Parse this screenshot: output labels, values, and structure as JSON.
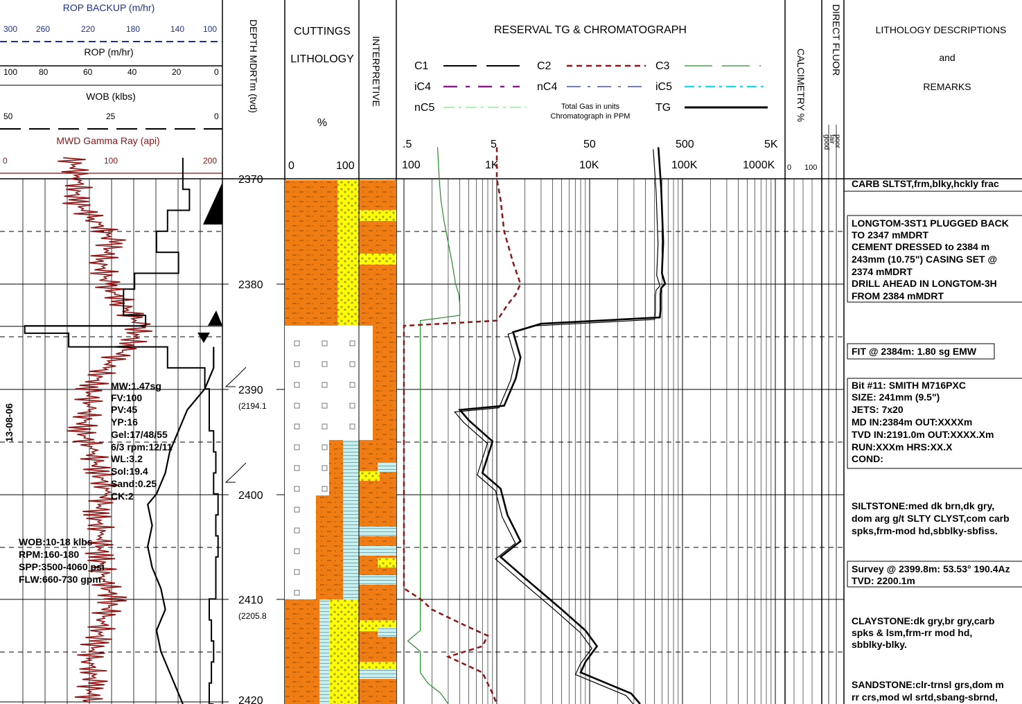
{
  "header": {
    "rop_backup": {
      "title": "ROP BACKUP (m/hr)",
      "ticks": [
        "300",
        "260",
        "220",
        "180",
        "140",
        "100"
      ]
    },
    "rop": {
      "title": "ROP (m/hr)",
      "ticks": [
        "100",
        "80",
        "60",
        "40",
        "20",
        "0"
      ]
    },
    "wob": {
      "title": "WOB (klbs)",
      "ticks": [
        "50",
        "25",
        "0"
      ]
    },
    "gamma": {
      "title": "MWD Gamma Ray (api)",
      "ticks": [
        "0",
        "100",
        "200"
      ]
    },
    "depth_title": "DEPTH MDRTm (tvd)",
    "cuttings": {
      "title1": "CUTTINGS",
      "title2": "LITHOLOGY",
      "unit": "%",
      "tick_left": "0",
      "tick_right": "100"
    },
    "interpretive": "INTERPRETIVE",
    "gas": {
      "title": "RESERVAL TG & CHROMATOGRAPH",
      "legend": [
        "C1",
        "C2",
        "C3",
        "iC4",
        "nC4",
        "iC5",
        "nC5",
        "TG"
      ],
      "note1": "Total Gas in units",
      "note2": "Chromatograph in PPM",
      "ticks_units": [
        ".5",
        "5",
        "50",
        "500",
        "5K"
      ],
      "ticks_ppm": [
        "100",
        "1K",
        "10K",
        "100K",
        "1000K"
      ]
    },
    "calcimetry": {
      "title": "CALCIMETRY %",
      "tick_left": "0",
      "tick_right": "100"
    },
    "direct_fluor": {
      "title": "DIRECT FLUOR",
      "grades": [
        "poor",
        "fair",
        "good"
      ]
    },
    "lithology": {
      "title": "LITHOLOGY DESCRIPTIONS",
      "and": "and",
      "remarks": "REMARKS"
    }
  },
  "depth": {
    "labels": [
      "2370",
      "2380",
      "2390",
      "2400",
      "2410",
      "2420"
    ],
    "tvd": [
      "(2194.1",
      "(2205.8"
    ]
  },
  "annotations": {
    "date": "13-08-06",
    "mud": [
      "MW:1.47sg",
      "FV:100",
      "PV:45",
      "YP:16",
      "Gel:17/48/55",
      "6/3 rpm:12/11",
      "WL:3.2",
      "Sol:19.4",
      "Sand:0.25",
      "CK:2"
    ],
    "drilling": [
      "WOB:10-18 klbs",
      "RPM:160-180",
      "SPP:3500-4060 psi",
      "FLW:660-730 gpm"
    ]
  },
  "remarks": {
    "carb_top": "CARB SLTST,frm,blky,hckly frac",
    "plug": [
      "LONGTOM-3ST1 PLUGGED BACK",
      "TO 2347 mMDRT",
      "CEMENT DRESSED to 2384 m",
      "243mm (10.75\") CASING SET @",
      "2374 mMDRT",
      "DRILL AHEAD IN LONGTOM-3H",
      "FROM 2384 mMDRT"
    ],
    "fit": "FIT @ 2384m: 1.80 sg EMW",
    "bit": [
      "Bit #11: SMITH M716PXC",
      "SIZE: 241mm (9.5\")",
      "JETS: 7x20",
      "MD IN:2384m     OUT:XXXXm",
      "TVD IN:2191.0m  OUT:XXXX.Xm",
      "RUN:XXXm        HRS:XX.X",
      "COND:"
    ],
    "siltstone": [
      "SILTSTONE:med dk brn,dk gry,",
      "dom arg g/t SLTY CLYST,com carb",
      "spks,frm-mod hd,sbblky-sbfiss."
    ],
    "survey": [
      "Survey @ 2399.8m: 53.53° 190.4Az",
      "TVD: 2200.1m"
    ],
    "claystone": [
      "CLAYSTONE:dk gry,br gry,carb",
      "spks & lsm,frm-rr mod hd,",
      "sbblky-blky."
    ],
    "sandstone": [
      "SANDSTONE:clr-trnsl grs,dom m",
      "rr crs,mod wl srtd,sbang-sbrnd,"
    ]
  },
  "colors": {
    "blue": "#1e2f8f",
    "gamma": "#8b1414",
    "orange": "#f07d14",
    "yellow": "#ffff00",
    "cyan": "#c8f0f0",
    "c3": "#2a8a2a",
    "c2": "#8b1414"
  },
  "chart_data": {
    "type": "line",
    "title": "RESERVAL TG & CHROMATOGRAPH",
    "depth_range_mdrt": [
      2367.7,
      2420.2
    ],
    "ylabel": "DEPTH MDRTm (tvd)",
    "series": [
      {
        "name": "TG",
        "x_scale": "log (ppm)",
        "depth": [
          2367,
          2371,
          2376,
          2379,
          2380,
          2380.4,
          2381,
          2382.5,
          2383.2,
          2383.8,
          2384.6,
          2387,
          2389,
          2391.6,
          2392,
          2393,
          2395,
          2398,
          2399.5,
          2402,
          2404.5,
          2406,
          2408,
          2411,
          2413,
          2414.5,
          2416,
          2417,
          2419,
          2420
        ],
        "ppm": [
          55000,
          59000,
          62000,
          60000,
          65000,
          59000,
          58000,
          58000,
          57000,
          3000,
          1500,
          1800,
          1600,
          1200,
          400,
          500,
          900,
          700,
          1100,
          1300,
          1800,
          1100,
          2000,
          5000,
          9000,
          12000,
          9000,
          8000,
          28000,
          35000
        ]
      },
      {
        "name": "C2",
        "x_scale": "log (ppm)",
        "depth": [
          2367,
          2370,
          2372,
          2375,
          2378,
          2380,
          2381,
          2382,
          2383,
          2383.5,
          2384,
          2409,
          2410,
          2411,
          2412.5,
          2413.5,
          2414.5,
          2415.5,
          2417,
          2419,
          2420
        ],
        "ppm": [
          1000,
          1000,
          1100,
          1200,
          1500,
          1800,
          1600,
          1300,
          1100,
          1000,
          100,
          100,
          150,
          200,
          450,
          800,
          700,
          300,
          700,
          900,
          1000
        ]
      },
      {
        "name": "C3",
        "x_scale": "log (ppm)",
        "depth": [
          2367,
          2370,
          2372,
          2374,
          2378,
          2380,
          2381,
          2382,
          2383,
          2383.5,
          2413,
          2414,
          2415,
          2417,
          2418,
          2419,
          2420
        ],
        "ppm": [
          230,
          240,
          250,
          270,
          330,
          360,
          390,
          400,
          400,
          150,
          150,
          110,
          150,
          150,
          180,
          250,
          300
        ]
      },
      {
        "name": "MWD Gamma Ray (api)",
        "x_scale": "linear (api)",
        "depth": [
          2368,
          2370,
          2372,
          2374,
          2376,
          2378,
          2380,
          2382,
          2384,
          2386,
          2388,
          2390,
          2392,
          2394,
          2396,
          2398,
          2400,
          2402,
          2404,
          2406,
          2408,
          2410,
          2412,
          2414,
          2416,
          2418,
          2420
        ],
        "api": [
          62,
          70,
          65,
          85,
          100,
          90,
          95,
          110,
          125,
          115,
          92,
          80,
          78,
          72,
          82,
          88,
          95,
          85,
          90,
          88,
          92,
          100,
          92,
          85,
          80,
          82,
          78
        ]
      },
      {
        "name": "ROP (m/hr)",
        "x_scale": "linear (m/hr)",
        "depth": [
          2368,
          2371,
          2373,
          2375,
          2377,
          2379,
          2380.5,
          2383,
          2384,
          2384.7,
          2386,
          2388,
          2390,
          2392,
          2394,
          2396,
          2398,
          2400,
          2402,
          2404,
          2406,
          2408,
          2410,
          2412,
          2414,
          2416,
          2418,
          2420
        ],
        "rop": [
          18,
          15,
          25,
          30,
          20,
          40,
          45,
          35,
          90,
          70,
          25,
          8,
          6,
          6,
          4,
          3,
          4,
          2,
          3,
          2,
          3,
          3,
          6,
          5,
          4,
          5,
          6,
          4
        ]
      },
      {
        "name": "WOB (klbs)",
        "x_scale": "linear (klbs)",
        "depth": [
          2386,
          2388,
          2390,
          2392,
          2394,
          2396,
          2398,
          2400,
          2401,
          2403,
          2405,
          2407,
          2409,
          2411,
          2413,
          2415,
          2417,
          2419,
          2420
        ],
        "wob": [
          2,
          2,
          4,
          8,
          10,
          12,
          13,
          15,
          17,
          16,
          17,
          16,
          14,
          13,
          15,
          14,
          12,
          10,
          9
        ]
      }
    ],
    "cuttings_lithology_intervals": [
      {
        "top": 2368,
        "base": 2383.8,
        "lithology": [
          "siltstone 70%",
          "sandstone 30%"
        ]
      },
      {
        "top": 2383.8,
        "base": 2393,
        "lithology": [
          "cement"
        ]
      },
      {
        "top": 2393,
        "base": 2410,
        "lithology": [
          "siltstone",
          "claystone",
          "cement"
        ]
      },
      {
        "top": 2410,
        "base": 2420,
        "lithology": [
          "siltstone",
          "claystone",
          "sandstone"
        ]
      }
    ]
  }
}
